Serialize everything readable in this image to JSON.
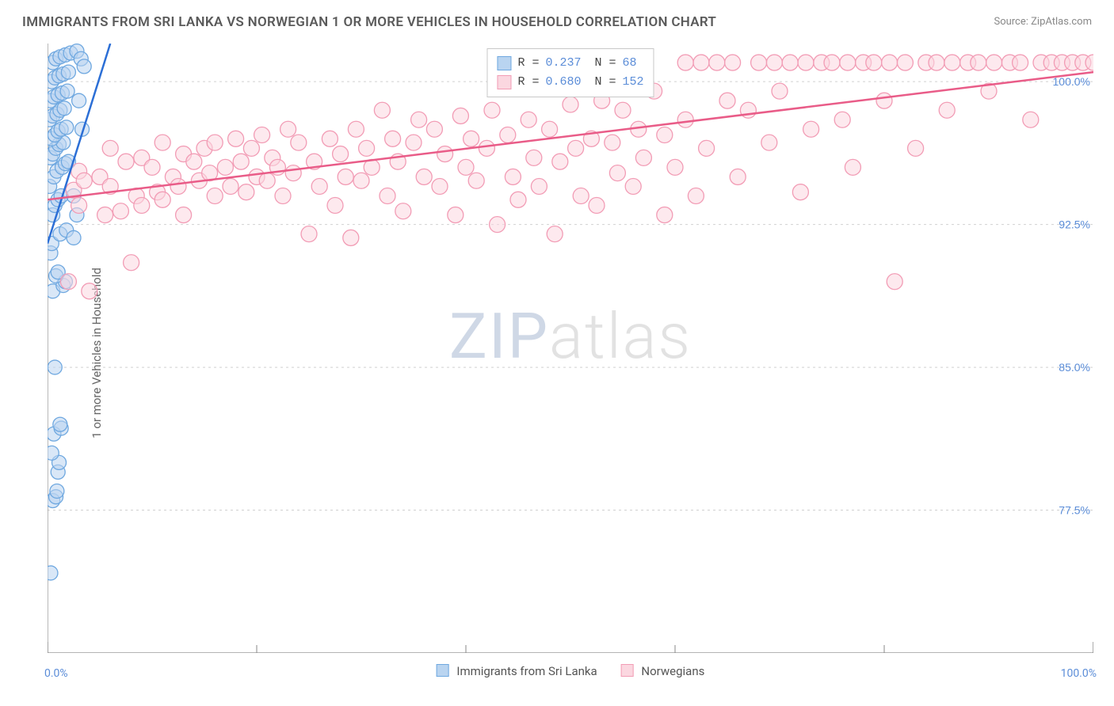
{
  "title": "IMMIGRANTS FROM SRI LANKA VS NORWEGIAN 1 OR MORE VEHICLES IN HOUSEHOLD CORRELATION CHART",
  "source": "Source: ZipAtlas.com",
  "ylabel": "1 or more Vehicles in Household",
  "watermark_a": "ZIP",
  "watermark_b": "atlas",
  "chart": {
    "type": "scatter",
    "xlim": [
      0,
      100
    ],
    "ylim": [
      70,
      102
    ],
    "x_ticks": [
      0,
      100
    ],
    "x_tick_labels": [
      "0.0%",
      "100.0%"
    ],
    "x_minor_ticks": [
      20,
      40,
      60,
      80
    ],
    "y_ticks": [
      77.5,
      85.0,
      92.5,
      100.0
    ],
    "y_tick_labels": [
      "77.5%",
      "85.0%",
      "92.5%",
      "100.0%"
    ],
    "background_color": "#ffffff",
    "grid_color": "#d0d0d0",
    "axis_color": "#888888",
    "series": [
      {
        "key": "srilanka",
        "label": "Immigrants from Sri Lanka",
        "color_fill": "#b9d4f0",
        "color_stroke": "#6fa8e0",
        "line_color": "#2c6fd6",
        "marker_r": 9,
        "regression": {
          "x1": 0,
          "y1": 91.5,
          "x2": 6,
          "y2": 102
        },
        "R": "0.237",
        "N": "68",
        "points": [
          [
            0.3,
            74.2
          ],
          [
            0.5,
            78.0
          ],
          [
            0.8,
            78.2
          ],
          [
            0.9,
            78.5
          ],
          [
            1.0,
            79.5
          ],
          [
            1.1,
            80.0
          ],
          [
            0.4,
            80.5
          ],
          [
            0.6,
            81.5
          ],
          [
            1.3,
            81.8
          ],
          [
            0.7,
            85.0
          ],
          [
            1.2,
            82.0
          ],
          [
            0.5,
            89.0
          ],
          [
            1.5,
            89.3
          ],
          [
            1.7,
            89.5
          ],
          [
            0.8,
            89.8
          ],
          [
            1.0,
            90.0
          ],
          [
            0.3,
            91.0
          ],
          [
            0.4,
            91.5
          ],
          [
            1.2,
            92.0
          ],
          [
            1.8,
            92.2
          ],
          [
            2.5,
            91.8
          ],
          [
            0.5,
            93.0
          ],
          [
            0.7,
            93.5
          ],
          [
            1.0,
            93.8
          ],
          [
            1.3,
            94.0
          ],
          [
            0.2,
            94.5
          ],
          [
            0.6,
            95.0
          ],
          [
            0.9,
            95.3
          ],
          [
            1.4,
            95.5
          ],
          [
            1.7,
            95.7
          ],
          [
            2.0,
            95.8
          ],
          [
            0.3,
            96.0
          ],
          [
            0.5,
            96.2
          ],
          [
            0.8,
            96.5
          ],
          [
            1.1,
            96.7
          ],
          [
            1.5,
            96.8
          ],
          [
            0.4,
            97.0
          ],
          [
            0.7,
            97.2
          ],
          [
            1.0,
            97.4
          ],
          [
            1.3,
            97.5
          ],
          [
            1.8,
            97.6
          ],
          [
            0.2,
            98.0
          ],
          [
            0.5,
            98.2
          ],
          [
            0.9,
            98.3
          ],
          [
            1.2,
            98.5
          ],
          [
            1.6,
            98.6
          ],
          [
            0.3,
            99.0
          ],
          [
            0.6,
            99.2
          ],
          [
            1.0,
            99.3
          ],
          [
            1.4,
            99.4
          ],
          [
            1.9,
            99.5
          ],
          [
            0.4,
            100.0
          ],
          [
            0.7,
            100.2
          ],
          [
            1.1,
            100.3
          ],
          [
            1.5,
            100.4
          ],
          [
            2.0,
            100.5
          ],
          [
            0.5,
            101.0
          ],
          [
            0.8,
            101.2
          ],
          [
            1.2,
            101.3
          ],
          [
            1.7,
            101.4
          ],
          [
            2.2,
            101.5
          ],
          [
            2.8,
            101.6
          ],
          [
            3.2,
            101.2
          ],
          [
            3.5,
            100.8
          ],
          [
            3.0,
            99.0
          ],
          [
            3.3,
            97.5
          ],
          [
            2.5,
            94.0
          ],
          [
            2.8,
            93.0
          ]
        ]
      },
      {
        "key": "norwegian",
        "label": "Norwegians",
        "color_fill": "#fbd7e0",
        "color_stroke": "#f29cb5",
        "line_color": "#e95c88",
        "marker_r": 10,
        "regression": {
          "x1": 0,
          "y1": 93.8,
          "x2": 100,
          "y2": 100.5
        },
        "R": "0.680",
        "N": "152",
        "points": [
          [
            2,
            89.5
          ],
          [
            2.5,
            94.3
          ],
          [
            3,
            93.5
          ],
          [
            3,
            95.3
          ],
          [
            3.5,
            94.8
          ],
          [
            4,
            89.0
          ],
          [
            5,
            95.0
          ],
          [
            5.5,
            93.0
          ],
          [
            6,
            94.5
          ],
          [
            6,
            96.5
          ],
          [
            7,
            93.2
          ],
          [
            7.5,
            95.8
          ],
          [
            8,
            90.5
          ],
          [
            8.5,
            94.0
          ],
          [
            9,
            96.0
          ],
          [
            9,
            93.5
          ],
          [
            10,
            95.5
          ],
          [
            10.5,
            94.2
          ],
          [
            11,
            96.8
          ],
          [
            11,
            93.8
          ],
          [
            12,
            95.0
          ],
          [
            12.5,
            94.5
          ],
          [
            13,
            96.2
          ],
          [
            13,
            93.0
          ],
          [
            14,
            95.8
          ],
          [
            14.5,
            94.8
          ],
          [
            15,
            96.5
          ],
          [
            15.5,
            95.2
          ],
          [
            16,
            94.0
          ],
          [
            16,
            96.8
          ],
          [
            17,
            95.5
          ],
          [
            17.5,
            94.5
          ],
          [
            18,
            97.0
          ],
          [
            18.5,
            95.8
          ],
          [
            19,
            94.2
          ],
          [
            19.5,
            96.5
          ],
          [
            20,
            95.0
          ],
          [
            20.5,
            97.2
          ],
          [
            21,
            94.8
          ],
          [
            21.5,
            96.0
          ],
          [
            22,
            95.5
          ],
          [
            22.5,
            94.0
          ],
          [
            23,
            97.5
          ],
          [
            23.5,
            95.2
          ],
          [
            24,
            96.8
          ],
          [
            25,
            92.0
          ],
          [
            25.5,
            95.8
          ],
          [
            26,
            94.5
          ],
          [
            27,
            97.0
          ],
          [
            27.5,
            93.5
          ],
          [
            28,
            96.2
          ],
          [
            28.5,
            95.0
          ],
          [
            29,
            91.8
          ],
          [
            29.5,
            97.5
          ],
          [
            30,
            94.8
          ],
          [
            30.5,
            96.5
          ],
          [
            31,
            95.5
          ],
          [
            32,
            98.5
          ],
          [
            32.5,
            94.0
          ],
          [
            33,
            97.0
          ],
          [
            33.5,
            95.8
          ],
          [
            34,
            93.2
          ],
          [
            35,
            96.8
          ],
          [
            35.5,
            98.0
          ],
          [
            36,
            95.0
          ],
          [
            37,
            97.5
          ],
          [
            37.5,
            94.5
          ],
          [
            38,
            96.2
          ],
          [
            39,
            93.0
          ],
          [
            39.5,
            98.2
          ],
          [
            40,
            95.5
          ],
          [
            40.5,
            97.0
          ],
          [
            41,
            94.8
          ],
          [
            42,
            96.5
          ],
          [
            42.5,
            98.5
          ],
          [
            43,
            92.5
          ],
          [
            44,
            97.2
          ],
          [
            44.5,
            95.0
          ],
          [
            45,
            93.8
          ],
          [
            46,
            98.0
          ],
          [
            46.5,
            96.0
          ],
          [
            47,
            94.5
          ],
          [
            48,
            97.5
          ],
          [
            48.5,
            92.0
          ],
          [
            49,
            95.8
          ],
          [
            50,
            98.8
          ],
          [
            50.5,
            96.5
          ],
          [
            51,
            94.0
          ],
          [
            52,
            97.0
          ],
          [
            52.5,
            93.5
          ],
          [
            53,
            99.0
          ],
          [
            54,
            96.8
          ],
          [
            54.5,
            95.2
          ],
          [
            55,
            98.5
          ],
          [
            56,
            94.5
          ],
          [
            56.5,
            97.5
          ],
          [
            57,
            96.0
          ],
          [
            58,
            99.5
          ],
          [
            59,
            93.0
          ],
          [
            59,
            97.2
          ],
          [
            60,
            95.5
          ],
          [
            61,
            101.0
          ],
          [
            61,
            98.0
          ],
          [
            62,
            94.0
          ],
          [
            62.5,
            101.0
          ],
          [
            63,
            96.5
          ],
          [
            64,
            101.0
          ],
          [
            65,
            99.0
          ],
          [
            65.5,
            101.0
          ],
          [
            66,
            95.0
          ],
          [
            67,
            98.5
          ],
          [
            68,
            101.0
          ],
          [
            69,
            96.8
          ],
          [
            69.5,
            101.0
          ],
          [
            70,
            99.5
          ],
          [
            71,
            101.0
          ],
          [
            72,
            94.2
          ],
          [
            72.5,
            101.0
          ],
          [
            73,
            97.5
          ],
          [
            74,
            101.0
          ],
          [
            75,
            101.0
          ],
          [
            76,
            98.0
          ],
          [
            76.5,
            101.0
          ],
          [
            77,
            95.5
          ],
          [
            78,
            101.0
          ],
          [
            79,
            101.0
          ],
          [
            80,
            99.0
          ],
          [
            80.5,
            101.0
          ],
          [
            81,
            89.5
          ],
          [
            82,
            101.0
          ],
          [
            83,
            96.5
          ],
          [
            84,
            101.0
          ],
          [
            85,
            101.0
          ],
          [
            86,
            98.5
          ],
          [
            86.5,
            101.0
          ],
          [
            88,
            101.0
          ],
          [
            89,
            101.0
          ],
          [
            90,
            99.5
          ],
          [
            90.5,
            101.0
          ],
          [
            92,
            101.0
          ],
          [
            93,
            101.0
          ],
          [
            94,
            98.0
          ],
          [
            95,
            101.0
          ],
          [
            96,
            101.0
          ],
          [
            97,
            101.0
          ],
          [
            98,
            101.0
          ],
          [
            99,
            101.0
          ],
          [
            100,
            101.0
          ]
        ]
      }
    ]
  },
  "legend_bottom": [
    {
      "label": "Immigrants from Sri Lanka",
      "fill": "#b9d4f0",
      "stroke": "#6fa8e0"
    },
    {
      "label": "Norwegians",
      "fill": "#fbd7e0",
      "stroke": "#f29cb5"
    }
  ]
}
